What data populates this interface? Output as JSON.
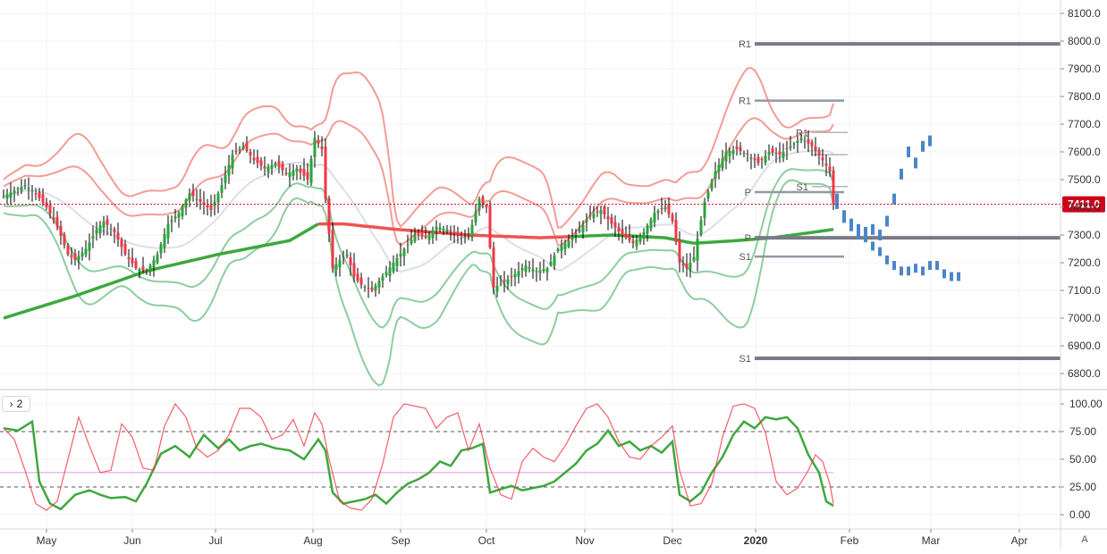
{
  "chart_data": [
    {
      "type": "candlestick",
      "title": "",
      "price_axis": [
        8100,
        8000,
        7900,
        7800,
        7700,
        7600,
        7500,
        7400,
        7300,
        7200,
        7100,
        7000,
        6900,
        6800
      ],
      "price_axis_labels": [
        "8100.0",
        "8000.0",
        "7900.0",
        "7800.0",
        "7700.0",
        "7600.0",
        "7500.0",
        "7400.0",
        "7300.0",
        "7200.0",
        "7100.0",
        "7000.0",
        "6900.0",
        "6800.0"
      ],
      "ylim": [
        6760,
        8130
      ],
      "x_axis_labels": [
        "May",
        "Jun",
        "Jul",
        "Aug",
        "Sep",
        "Oct",
        "Nov",
        "Dec",
        "2020",
        "Feb",
        "Mar",
        "Apr"
      ],
      "last_price_label": "7411.0",
      "last_price": 7411,
      "close_anchors": [
        [
          0,
          7440
        ],
        [
          3,
          7460
        ],
        [
          6,
          7480
        ],
        [
          9,
          7450
        ],
        [
          12,
          7400
        ],
        [
          15,
          7330
        ],
        [
          18,
          7230
        ],
        [
          20,
          7210
        ],
        [
          23,
          7250
        ],
        [
          26,
          7320
        ],
        [
          28,
          7350
        ],
        [
          31,
          7310
        ],
        [
          34,
          7230
        ],
        [
          37,
          7180
        ],
        [
          40,
          7170
        ],
        [
          43,
          7230
        ],
        [
          46,
          7340
        ],
        [
          49,
          7380
        ],
        [
          52,
          7450
        ],
        [
          55,
          7420
        ],
        [
          58,
          7390
        ],
        [
          61,
          7480
        ],
        [
          64,
          7590
        ],
        [
          67,
          7620
        ],
        [
          70,
          7570
        ],
        [
          73,
          7540
        ],
        [
          76,
          7560
        ],
        [
          79,
          7520
        ],
        [
          82,
          7540
        ],
        [
          85,
          7500
        ],
        [
          87,
          7650
        ],
        [
          89,
          7610
        ],
        [
          90,
          7430
        ],
        [
          92,
          7180
        ],
        [
          94,
          7210
        ],
        [
          96,
          7230
        ],
        [
          98,
          7150
        ],
        [
          100,
          7120
        ],
        [
          103,
          7100
        ],
        [
          106,
          7150
        ],
        [
          109,
          7200
        ],
        [
          112,
          7250
        ],
        [
          115,
          7300
        ],
        [
          118,
          7290
        ],
        [
          121,
          7330
        ],
        [
          124,
          7320
        ],
        [
          127,
          7300
        ],
        [
          130,
          7290
        ],
        [
          133,
          7430
        ],
        [
          135,
          7400
        ],
        [
          137,
          7110
        ],
        [
          140,
          7130
        ],
        [
          143,
          7160
        ],
        [
          146,
          7190
        ],
        [
          149,
          7170
        ],
        [
          152,
          7180
        ],
        [
          155,
          7250
        ],
        [
          158,
          7280
        ],
        [
          161,
          7320
        ],
        [
          164,
          7370
        ],
        [
          167,
          7390
        ],
        [
          170,
          7340
        ],
        [
          173,
          7300
        ],
        [
          176,
          7270
        ],
        [
          179,
          7310
        ],
        [
          182,
          7380
        ],
        [
          185,
          7400
        ],
        [
          187,
          7350
        ],
        [
          189,
          7200
        ],
        [
          191,
          7180
        ],
        [
          193,
          7220
        ],
        [
          196,
          7420
        ],
        [
          199,
          7530
        ],
        [
          202,
          7600
        ],
        [
          205,
          7610
        ],
        [
          208,
          7590
        ],
        [
          211,
          7560
        ],
        [
          214,
          7600
        ],
        [
          217,
          7590
        ],
        [
          220,
          7620
        ],
        [
          223,
          7650
        ],
        [
          226,
          7620
        ],
        [
          229,
          7570
        ],
        [
          231,
          7530
        ],
        [
          232,
          7411
        ]
      ],
      "forecast_high": [
        [
          233,
          7430
        ],
        [
          235,
          7370
        ],
        [
          237,
          7340
        ],
        [
          239,
          7320
        ],
        [
          241,
          7310
        ],
        [
          243,
          7320
        ],
        [
          245,
          7300
        ],
        [
          247,
          7350
        ],
        [
          249,
          7430
        ],
        [
          251,
          7520
        ],
        [
          253,
          7600
        ],
        [
          255,
          7560
        ],
        [
          257,
          7620
        ],
        [
          259,
          7640
        ]
      ],
      "forecast_low": [
        [
          233,
          7410
        ],
        [
          235,
          7360
        ],
        [
          237,
          7330
        ],
        [
          239,
          7300
        ],
        [
          241,
          7290
        ],
        [
          243,
          7260
        ],
        [
          245,
          7240
        ],
        [
          247,
          7210
        ],
        [
          249,
          7190
        ],
        [
          251,
          7170
        ],
        [
          253,
          7170
        ],
        [
          255,
          7180
        ],
        [
          257,
          7170
        ],
        [
          259,
          7190
        ],
        [
          261,
          7190
        ],
        [
          263,
          7160
        ],
        [
          265,
          7150
        ],
        [
          267,
          7150
        ]
      ],
      "pivot_levels": [
        {
          "label": "R1",
          "value": 7990,
          "from": 210,
          "to": 300,
          "color": "#787b86",
          "width": 4
        },
        {
          "label": "R1",
          "value": 7785,
          "from": 210,
          "to": 235,
          "color": "#9598a1",
          "width": 2.5
        },
        {
          "label": "R1",
          "value": 7670,
          "from": 226,
          "to": 236,
          "color": "#b2b5be",
          "width": 1.5
        },
        {
          "label": "",
          "value": 7590,
          "from": 226,
          "to": 236,
          "color": "#b2b5be",
          "width": 1.5
        },
        {
          "label": "S1",
          "value": 7475,
          "from": 226,
          "to": 236,
          "color": "#b2b5be",
          "width": 1.5
        },
        {
          "label": "P",
          "value": 7455,
          "from": 210,
          "to": 235,
          "color": "#9598a1",
          "width": 2.5
        },
        {
          "label": "P",
          "value": 7290,
          "from": 210,
          "to": 300,
          "color": "#787b86",
          "width": 4
        },
        {
          "label": "S1",
          "value": 7222,
          "from": 210,
          "to": 235,
          "color": "#9598a1",
          "width": 2.5
        },
        {
          "label": "S1",
          "value": 6855,
          "from": 210,
          "to": 300,
          "color": "#787b86",
          "width": 4
        }
      ],
      "colors": {
        "up": "#26a638",
        "down": "#f23645",
        "upper_band": "#f28b82",
        "lower_band": "#81c995",
        "ma200_up": "#3ea83e",
        "ma200_down": "#ef5350",
        "forecast": "#4a86c8",
        "last_price": "#d0021b"
      }
    },
    {
      "type": "line",
      "title": "",
      "pane_label": "2",
      "y_axis": [
        100,
        75,
        50,
        25,
        0
      ],
      "y_axis_labels": [
        "100.00",
        "75.00",
        "50.00",
        "25.00",
        "0.00"
      ],
      "ylim": [
        -3,
        103
      ],
      "bands": [
        75,
        25
      ],
      "midline": 38,
      "series": [
        {
          "name": "",
          "color": "#3ea83e",
          "anchors": [
            [
              0,
              78
            ],
            [
              4,
              76
            ],
            [
              8,
              84
            ],
            [
              10,
              30
            ],
            [
              13,
              10
            ],
            [
              16,
              5
            ],
            [
              20,
              18
            ],
            [
              24,
              22
            ],
            [
              27,
              18
            ],
            [
              30,
              15
            ],
            [
              34,
              16
            ],
            [
              37,
              12
            ],
            [
              40,
              28
            ],
            [
              44,
              55
            ],
            [
              48,
              62
            ],
            [
              52,
              52
            ],
            [
              56,
              72
            ],
            [
              60,
              60
            ],
            [
              63,
              68
            ],
            [
              66,
              58
            ],
            [
              69,
              62
            ],
            [
              72,
              64
            ],
            [
              76,
              60
            ],
            [
              80,
              58
            ],
            [
              84,
              50
            ],
            [
              88,
              68
            ],
            [
              90,
              58
            ],
            [
              92,
              20
            ],
            [
              95,
              10
            ],
            [
              98,
              12
            ],
            [
              101,
              14
            ],
            [
              104,
              18
            ],
            [
              107,
              10
            ],
            [
              110,
              20
            ],
            [
              113,
              28
            ],
            [
              116,
              32
            ],
            [
              119,
              38
            ],
            [
              122,
              48
            ],
            [
              125,
              44
            ],
            [
              128,
              58
            ],
            [
              131,
              60
            ],
            [
              134,
              64
            ],
            [
              136,
              20
            ],
            [
              139,
              23
            ],
            [
              142,
              26
            ],
            [
              145,
              22
            ],
            [
              148,
              24
            ],
            [
              151,
              26
            ],
            [
              154,
              30
            ],
            [
              157,
              38
            ],
            [
              160,
              46
            ],
            [
              163,
              58
            ],
            [
              166,
              64
            ],
            [
              169,
              76
            ],
            [
              172,
              62
            ],
            [
              175,
              66
            ],
            [
              178,
              58
            ],
            [
              181,
              62
            ],
            [
              184,
              56
            ],
            [
              187,
              66
            ],
            [
              189,
              18
            ],
            [
              192,
              12
            ],
            [
              195,
              20
            ],
            [
              198,
              38
            ],
            [
              201,
              52
            ],
            [
              204,
              72
            ],
            [
              207,
              84
            ],
            [
              210,
              78
            ],
            [
              213,
              88
            ],
            [
              216,
              86
            ],
            [
              219,
              88
            ],
            [
              222,
              78
            ],
            [
              225,
              54
            ],
            [
              228,
              38
            ],
            [
              230,
              12
            ],
            [
              232,
              8
            ]
          ]
        },
        {
          "name": "",
          "color": "#f23645",
          "anchors": [
            [
              0,
              78
            ],
            [
              3,
              68
            ],
            [
              6,
              40
            ],
            [
              9,
              10
            ],
            [
              12,
              4
            ],
            [
              15,
              12
            ],
            [
              18,
              50
            ],
            [
              21,
              88
            ],
            [
              24,
              62
            ],
            [
              27,
              38
            ],
            [
              30,
              40
            ],
            [
              33,
              82
            ],
            [
              36,
              70
            ],
            [
              39,
              42
            ],
            [
              42,
              40
            ],
            [
              45,
              80
            ],
            [
              48,
              100
            ],
            [
              51,
              88
            ],
            [
              54,
              60
            ],
            [
              57,
              52
            ],
            [
              60,
              58
            ],
            [
              63,
              72
            ],
            [
              66,
              96
            ],
            [
              69,
              96
            ],
            [
              72,
              88
            ],
            [
              75,
              68
            ],
            [
              78,
              72
            ],
            [
              81,
              86
            ],
            [
              84,
              62
            ],
            [
              87,
              92
            ],
            [
              89,
              82
            ],
            [
              91,
              50
            ],
            [
              94,
              12
            ],
            [
              97,
              6
            ],
            [
              100,
              4
            ],
            [
              103,
              14
            ],
            [
              106,
              46
            ],
            [
              109,
              88
            ],
            [
              112,
              100
            ],
            [
              115,
              98
            ],
            [
              118,
              96
            ],
            [
              121,
              78
            ],
            [
              124,
              88
            ],
            [
              127,
              92
            ],
            [
              130,
              58
            ],
            [
              133,
              82
            ],
            [
              136,
              42
            ],
            [
              139,
              18
            ],
            [
              142,
              14
            ],
            [
              145,
              48
            ],
            [
              148,
              60
            ],
            [
              151,
              52
            ],
            [
              154,
              48
            ],
            [
              157,
              62
            ],
            [
              160,
              80
            ],
            [
              163,
              96
            ],
            [
              166,
              100
            ],
            [
              169,
              88
            ],
            [
              172,
              66
            ],
            [
              175,
              52
            ],
            [
              178,
              50
            ],
            [
              181,
              62
            ],
            [
              184,
              70
            ],
            [
              187,
              80
            ],
            [
              189,
              40
            ],
            [
              192,
              8
            ],
            [
              195,
              10
            ],
            [
              198,
              28
            ],
            [
              201,
              70
            ],
            [
              204,
              98
            ],
            [
              207,
              100
            ],
            [
              210,
              96
            ],
            [
              213,
              74
            ],
            [
              216,
              30
            ],
            [
              219,
              18
            ],
            [
              222,
              24
            ],
            [
              225,
              40
            ],
            [
              227,
              54
            ],
            [
              229,
              48
            ],
            [
              231,
              28
            ],
            [
              232,
              10
            ]
          ]
        }
      ]
    }
  ]
}
